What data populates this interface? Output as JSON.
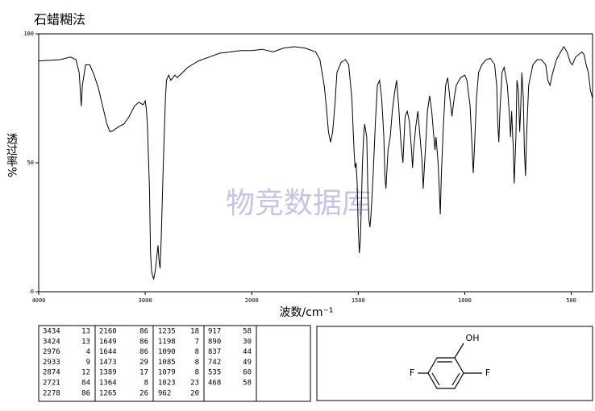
{
  "chart_data": {
    "type": "line",
    "title": "石蜡糊法",
    "watermark": "物竞数据库",
    "x_label": "波数/cm⁻¹",
    "y_label": "透过率%",
    "xlim": [
      4000,
      400
    ],
    "x_scale_change": {
      "at": 2000,
      "factor": 2
    },
    "ylim": [
      0,
      100
    ],
    "xticks": [
      4000,
      3000,
      2000,
      1500,
      1000,
      500
    ],
    "yticks": [
      0,
      50,
      100
    ],
    "series": [
      {
        "color": "#000000",
        "x": [
          4000,
          3800,
          3700,
          3650,
          3620,
          3600,
          3590,
          3560,
          3520,
          3480,
          3440,
          3400,
          3360,
          3330,
          3300,
          3250,
          3200,
          3150,
          3100,
          3060,
          3020,
          3000,
          2990,
          2980,
          2960,
          2950,
          2940,
          2930,
          2920,
          2910,
          2900,
          2890,
          2880,
          2870,
          2860,
          2850,
          2830,
          2810,
          2800,
          2780,
          2760,
          2720,
          2700,
          2650,
          2600,
          2500,
          2400,
          2300,
          2200,
          2100,
          2000,
          1950,
          1900,
          1850,
          1800,
          1750,
          1700,
          1680,
          1660,
          1650,
          1640,
          1630,
          1620,
          1610,
          1600,
          1580,
          1560,
          1545,
          1530,
          1520,
          1515,
          1510,
          1505,
          1500,
          1495,
          1490,
          1485,
          1480,
          1475,
          1470,
          1460,
          1455,
          1450,
          1445,
          1440,
          1430,
          1420,
          1410,
          1400,
          1390,
          1380,
          1375,
          1370,
          1360,
          1350,
          1340,
          1330,
          1320,
          1310,
          1300,
          1290,
          1285,
          1280,
          1270,
          1260,
          1250,
          1245,
          1240,
          1230,
          1220,
          1210,
          1200,
          1195,
          1185,
          1175,
          1165,
          1155,
          1145,
          1140,
          1135,
          1125,
          1120,
          1115,
          1110,
          1100,
          1090,
          1080,
          1070,
          1060,
          1050,
          1040,
          1020,
          1000,
          990,
          975,
          965,
          960,
          955,
          945,
          935,
          920,
          900,
          880,
          860,
          850,
          845,
          840,
          835,
          825,
          815,
          800,
          790,
          785,
          780,
          772,
          768,
          760,
          755,
          748,
          742,
          738,
          732,
          725,
          720,
          715,
          710,
          700,
          680,
          660,
          640,
          620,
          610,
          600,
          590,
          570,
          550,
          535,
          520,
          505,
          495,
          480,
          465,
          450,
          440,
          430,
          420,
          410,
          400
        ],
        "values": [
          89.5,
          90,
          91,
          90,
          85,
          72,
          80,
          88,
          88,
          84,
          79,
          72,
          65,
          62,
          62.5,
          64,
          65,
          68,
          72,
          73.5,
          72.5,
          74,
          71,
          65,
          40,
          15,
          8,
          6,
          5,
          7,
          10,
          14,
          18,
          12,
          9,
          20,
          50,
          75,
          82,
          84,
          82,
          84,
          83,
          85,
          87,
          89.5,
          91,
          92.5,
          93,
          93.5,
          93.5,
          94,
          93,
          94.5,
          95,
          94.5,
          93,
          90,
          80,
          72,
          62,
          58,
          62,
          72,
          85,
          89,
          90,
          88,
          75,
          55,
          48,
          50,
          42,
          25,
          15,
          20,
          35,
          50,
          60,
          65,
          60,
          40,
          28,
          25,
          30,
          45,
          65,
          80,
          82,
          75,
          60,
          45,
          40,
          55,
          60,
          70,
          77,
          82,
          72,
          58,
          50,
          60,
          68,
          70,
          66,
          55,
          48,
          55,
          64,
          70,
          60,
          50,
          40,
          55,
          70,
          76,
          70,
          60,
          55,
          60,
          50,
          40,
          30,
          45,
          65,
          80,
          83,
          75,
          68,
          75,
          80,
          83,
          84,
          82,
          72,
          55,
          46,
          55,
          75,
          85,
          88,
          90,
          90.5,
          88,
          80,
          65,
          58,
          70,
          85,
          87,
          80,
          68,
          60,
          70,
          55,
          42,
          60,
          82,
          78,
          62,
          70,
          85,
          75,
          55,
          45,
          60,
          80,
          88,
          90,
          90,
          88,
          82,
          80,
          84,
          90,
          93,
          95,
          93,
          89,
          88,
          91,
          92,
          93,
          92,
          88,
          85,
          78,
          75
        ]
      }
    ]
  },
  "peak_table": [
    [
      [
        3434,
        13
      ],
      [
        3424,
        13
      ],
      [
        2976,
        4
      ],
      [
        2933,
        9
      ],
      [
        2874,
        12
      ],
      [
        2721,
        84
      ],
      [
        2278,
        86
      ]
    ],
    [
      [
        2160,
        86
      ],
      [
        1649,
        86
      ],
      [
        1644,
        86
      ],
      [
        1473,
        29
      ],
      [
        1389,
        17
      ],
      [
        1364,
        8
      ],
      [
        1265,
        26
      ]
    ],
    [
      [
        1235,
        18
      ],
      [
        1198,
        7
      ],
      [
        1090,
        8
      ],
      [
        1085,
        8
      ],
      [
        1079,
        8
      ],
      [
        1023,
        23
      ],
      [
        962,
        20
      ]
    ],
    [
      [
        917,
        58
      ],
      [
        890,
        30
      ],
      [
        837,
        44
      ],
      [
        742,
        49
      ],
      [
        535,
        60
      ],
      [
        468,
        58
      ]
    ]
  ],
  "structure": {
    "hydroxyl": "OH",
    "fluorine_left": "F",
    "fluorine_right": "F"
  }
}
